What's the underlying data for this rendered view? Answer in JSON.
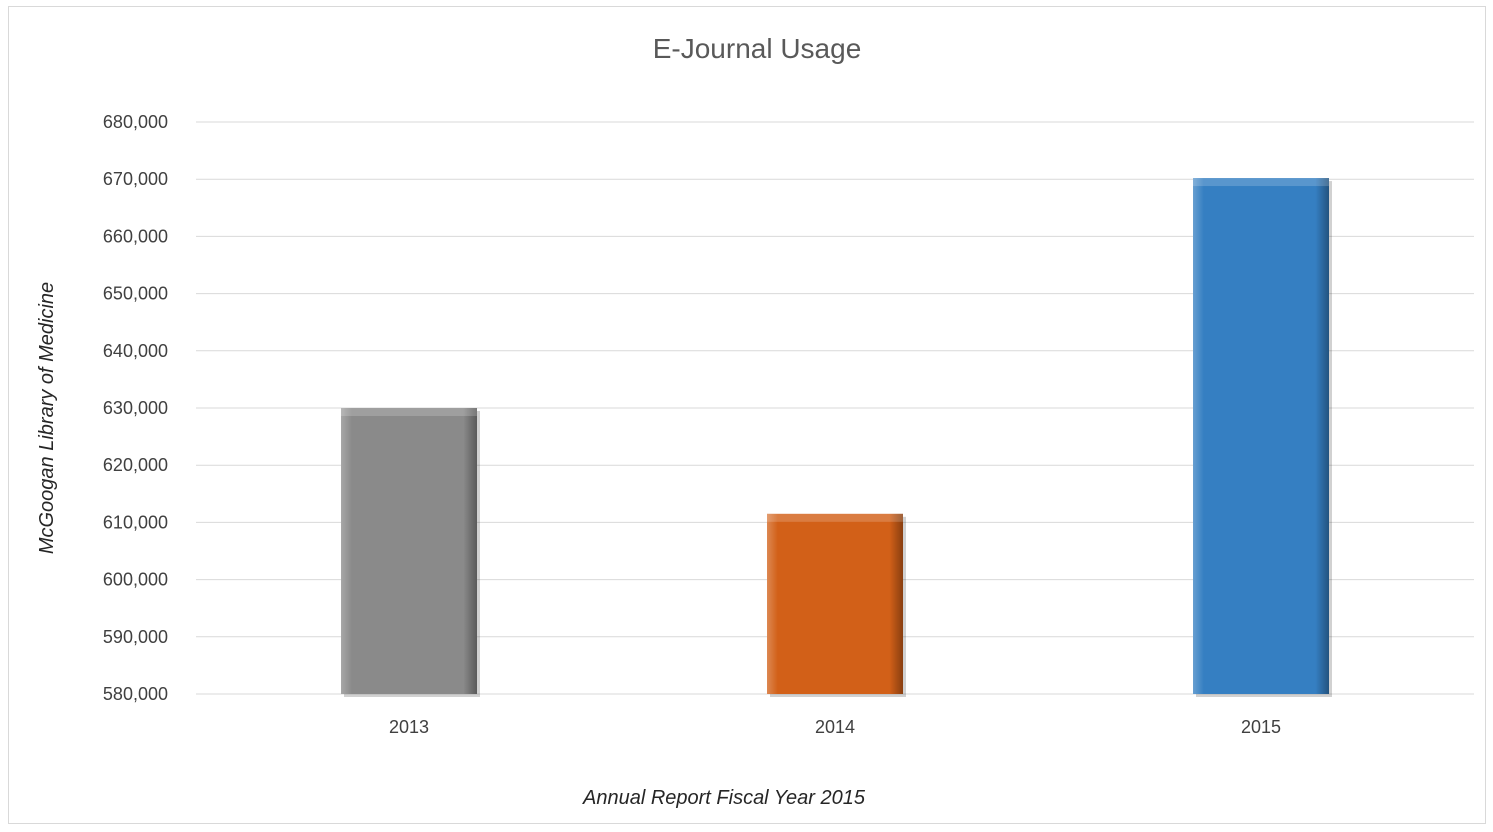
{
  "chart_data": {
    "type": "bar",
    "title": "E-Journal Usage",
    "xlabel": "Annual Report Fiscal Year 2015",
    "ylabel": "McGoogan Library of Medicine",
    "categories": [
      "2013",
      "2014",
      "2015"
    ],
    "values": [
      630000,
      611500,
      670200
    ],
    "ylim": [
      580000,
      680000
    ],
    "yticks": [
      580000,
      590000,
      600000,
      610000,
      620000,
      630000,
      640000,
      650000,
      660000,
      670000,
      680000
    ],
    "ytick_labels": [
      "580,000",
      "590,000",
      "600,000",
      "610,000",
      "620,000",
      "630,000",
      "640,000",
      "650,000",
      "660,000",
      "670,000",
      "680,000"
    ],
    "colors": [
      "#8a8a8a",
      "#d26018",
      "#357fc2"
    ],
    "grid": true,
    "legend": "none"
  }
}
